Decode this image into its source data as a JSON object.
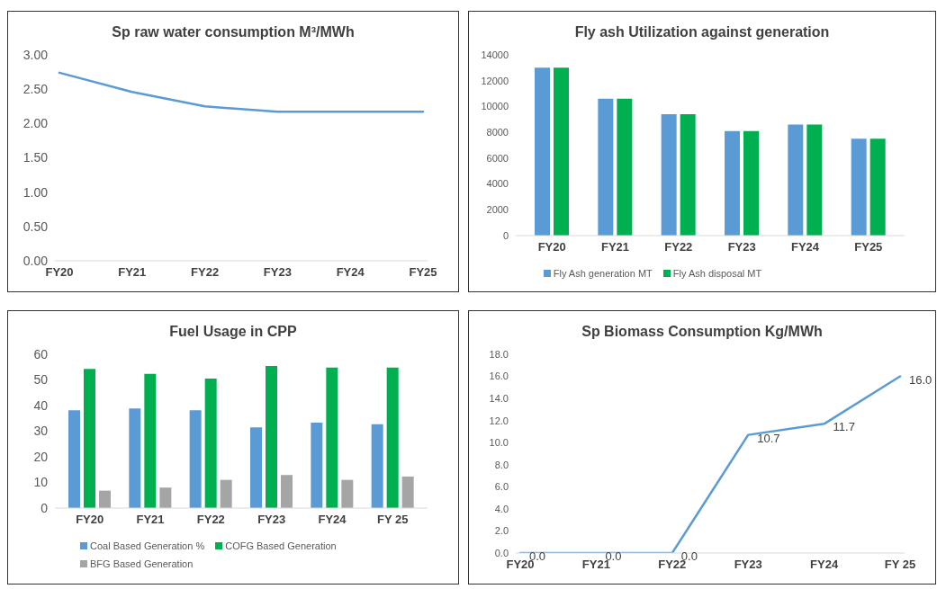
{
  "chart_data": [
    {
      "type": "line",
      "title": "Sp raw water consumption  M³/MWh",
      "categories": [
        "FY20",
        "FY21",
        "FY22",
        "FY23",
        "FY24",
        "FY25"
      ],
      "series": [
        {
          "color": "#5b9bd5",
          "values": [
            2.74,
            2.46,
            2.25,
            2.17,
            2.17,
            2.17
          ]
        }
      ],
      "ylim": [
        0,
        3
      ],
      "yticks": [
        {
          "value": 0,
          "label": "0.00"
        },
        {
          "value": 0.5,
          "label": "0.50"
        },
        {
          "value": 1,
          "label": "1.00"
        },
        {
          "value": 1.5,
          "label": "1.50"
        },
        {
          "value": 2,
          "label": "2.00"
        },
        {
          "value": 2.5,
          "label": "2.50"
        },
        {
          "value": 3,
          "label": "3.00"
        }
      ]
    },
    {
      "type": "bar",
      "title": "Fly ash Utilization against generation",
      "categories": [
        "FY20",
        "FY21",
        "FY22",
        "FY23",
        "FY24",
        "FY25"
      ],
      "series": [
        {
          "name": "Fly Ash generation MT",
          "color": "#5b9bd5",
          "values": [
            13000,
            10600,
            9400,
            8100,
            8600,
            7500
          ]
        },
        {
          "name": "Fly Ash disposal MT",
          "color": "#00b050",
          "values": [
            13000,
            10600,
            9400,
            8100,
            8600,
            7500
          ]
        }
      ],
      "ylim": [
        0,
        14000
      ],
      "yticks": [
        0,
        2000,
        4000,
        6000,
        8000,
        10000,
        12000,
        14000
      ],
      "legend": "bottom"
    },
    {
      "type": "bar",
      "title": "Fuel Usage in CPP",
      "categories": [
        "FY20",
        "FY21",
        "FY22",
        "FY23",
        "FY24",
        "FY 25"
      ],
      "series": [
        {
          "name": "Coal Based Generation %",
          "color": "#5b9bd5",
          "values": [
            38.2,
            38.9,
            38.2,
            31.5,
            33.3,
            32.7
          ]
        },
        {
          "name": "COFG Based Generation",
          "color": "#00b050",
          "values": [
            54.3,
            52.4,
            50.5,
            55.4,
            54.8,
            54.8
          ]
        },
        {
          "name": "BFG Based Generation",
          "color": "#a5a5a5",
          "values": [
            6.8,
            8.0,
            11.0,
            12.9,
            11.0,
            12.3
          ]
        }
      ],
      "ylim": [
        0,
        60
      ],
      "yticks": [
        0,
        10,
        20,
        30,
        40,
        50,
        60
      ],
      "legend": "bottom"
    },
    {
      "type": "line",
      "title": "Sp Biomass Consumption  Kg/MWh",
      "categories": [
        "FY20",
        "FY21",
        "FY22",
        "FY23",
        "FY24",
        "FY 25"
      ],
      "series": [
        {
          "color": "#5b9bd5",
          "values": [
            0,
            0,
            0,
            10.7,
            11.7,
            16
          ],
          "value_labels": [
            "0.0",
            "0.0",
            "0.0",
            "10.7",
            "11.7",
            "16.0"
          ]
        }
      ],
      "ylim": [
        0,
        18
      ],
      "yticks": [
        {
          "value": 0,
          "label": "0.0"
        },
        {
          "value": 2,
          "label": "2.0"
        },
        {
          "value": 4,
          "label": "4.0"
        },
        {
          "value": 6,
          "label": "6.0"
        },
        {
          "value": 8,
          "label": "8.0"
        },
        {
          "value": 10,
          "label": "10.0"
        },
        {
          "value": 12,
          "label": "12.0"
        },
        {
          "value": 14,
          "label": "14.0"
        },
        {
          "value": 16,
          "label": "16.0"
        },
        {
          "value": 18,
          "label": "18.0"
        }
      ]
    }
  ]
}
